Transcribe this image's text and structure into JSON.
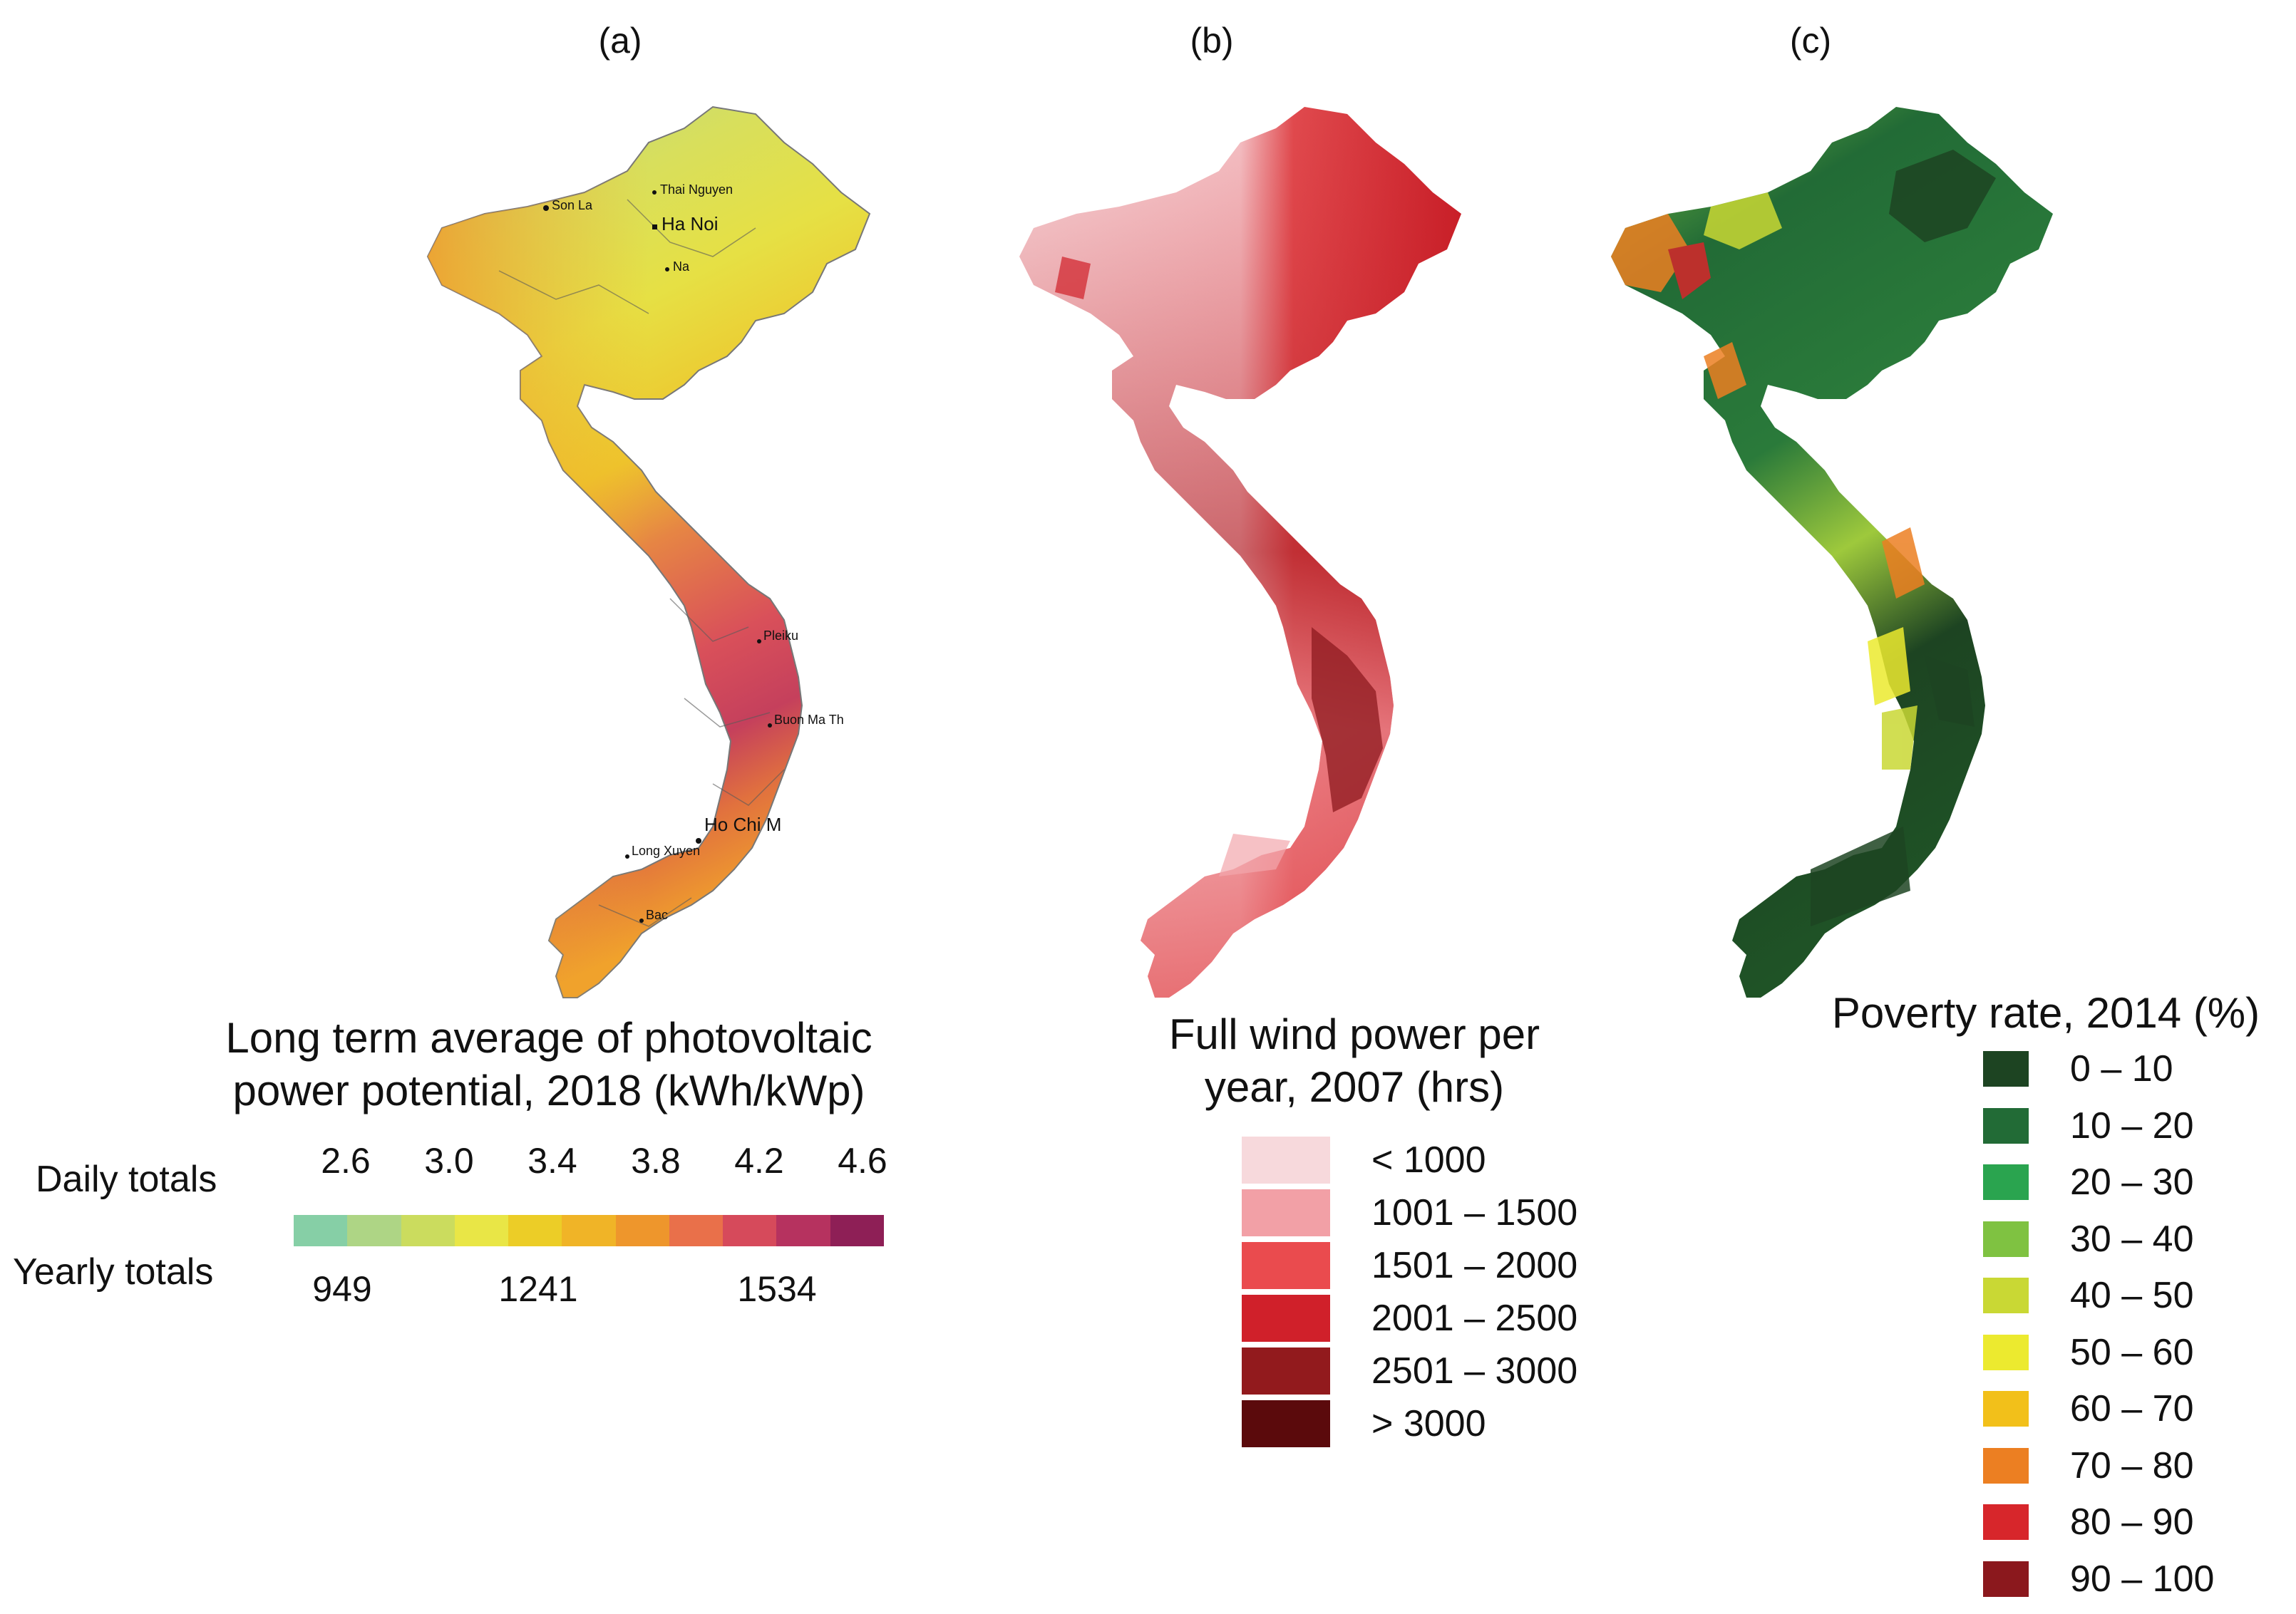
{
  "panels": {
    "a": {
      "label": "(a)"
    },
    "b": {
      "label": "(b)"
    },
    "c": {
      "label": "(c)"
    }
  },
  "pv_map": {
    "cities": [
      "Son La",
      "Thai Nguyen",
      "Ha Noi",
      "Na",
      "Pleiku",
      "Buon Ma Th",
      "Ho Chi M",
      "Long Xuyen",
      "Bac"
    ]
  },
  "pv_legend": {
    "title_line1": "Long term average of photovoltaic",
    "title_line2": "power potential, 2018 (kWh/kWp)",
    "daily_label": "Daily totals",
    "yearly_label": "Yearly totals",
    "daily_ticks": [
      "2.6",
      "3.0",
      "3.4",
      "3.8",
      "4.2",
      "4.6"
    ],
    "yearly_ticks": [
      "949",
      "1241",
      "1534"
    ],
    "colors": [
      "#86cfa6",
      "#aed585",
      "#cbdc5e",
      "#e9e646",
      "#eccd27",
      "#f0b427",
      "#ee962c",
      "#e9704a",
      "#d64a5b",
      "#b6325f",
      "#8e1f56"
    ]
  },
  "wind_legend": {
    "title_line1": "Full wind power per",
    "title_line2": "year, 2007 (hrs)",
    "items": [
      {
        "label": "< 1000",
        "color": "#f7d9dc"
      },
      {
        "label": "1001 – 1500",
        "color": "#f2a0a6"
      },
      {
        "label": "1501 – 2000",
        "color": "#ea4b4e"
      },
      {
        "label": "2001 – 2500",
        "color": "#d0202a"
      },
      {
        "label": "2501 – 3000",
        "color": "#921a1d"
      },
      {
        "label": "> 3000",
        "color": "#5b0a0c"
      }
    ]
  },
  "poverty_legend": {
    "title": "Poverty rate, 2014 (%)",
    "items": [
      {
        "label": "0 – 10",
        "color": "#1d4422"
      },
      {
        "label": "10 – 20",
        "color": "#226b36"
      },
      {
        "label": "20 – 30",
        "color": "#2aa44f"
      },
      {
        "label": "30 – 40",
        "color": "#7fc241"
      },
      {
        "label": "40 – 50",
        "color": "#c9d834"
      },
      {
        "label": "50 – 60",
        "color": "#ecea2f"
      },
      {
        "label": "60 – 70",
        "color": "#f2c01a"
      },
      {
        "label": "70 – 80",
        "color": "#ec7f22"
      },
      {
        "label": "80 – 90",
        "color": "#d7262b"
      },
      {
        "label": "90 – 100",
        "color": "#8b181d"
      }
    ]
  }
}
